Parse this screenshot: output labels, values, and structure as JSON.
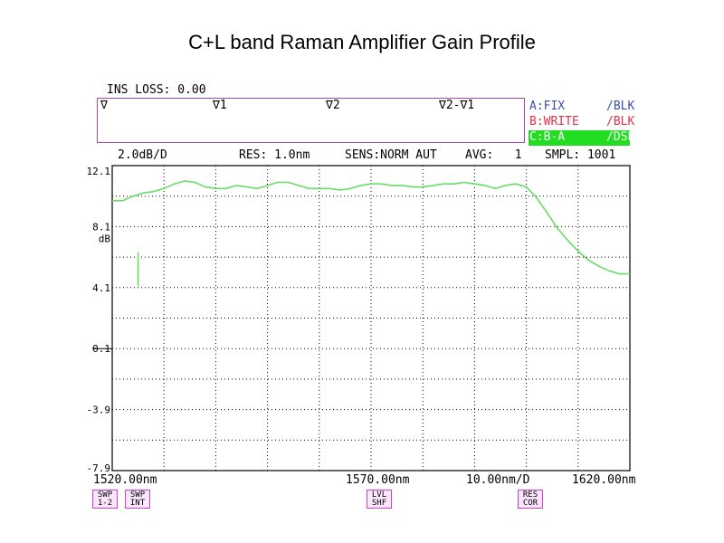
{
  "title": "C+L band Raman Amplifier Gain Profile",
  "ins_loss": "INS LOSS: 0.00",
  "markers": [
    "∇",
    "∇1",
    "∇2",
    "∇2-∇1"
  ],
  "traces": [
    {
      "label": "A:FIX",
      "mode": "/BLK",
      "color": "#3a4fb0"
    },
    {
      "label": "B:WRITE",
      "mode": "/BLK",
      "color": "#e0344a"
    },
    {
      "label": "C:B-A",
      "mode": "/DSP",
      "color": "#ffffff",
      "highlight": "#22dd22"
    }
  ],
  "status": {
    "scale": "2.0dB/D",
    "res": "RES: 1.0nm",
    "sens": "SENS:NORM AUT",
    "avg": "AVG:   1",
    "smpl": "SMPL: 1001"
  },
  "soft_keys": [
    {
      "line1": "SWP",
      "line2": "1-2"
    },
    {
      "line1": "SWP",
      "line2": "INT"
    },
    {
      "line1": "LVL",
      "line2": "SHF"
    },
    {
      "line1": "RES",
      "line2": "COR"
    }
  ],
  "chart_data": {
    "type": "line",
    "title": "C+L band Raman Amplifier Gain Profile",
    "xlabel": "",
    "ylabel": "dB",
    "x_labels": {
      "start": "1520.00nm",
      "center": "1570.00nm",
      "span_per_div": "10.00nm/D",
      "end": "1620.00nm"
    },
    "xlim": [
      1520,
      1620
    ],
    "ylim": [
      -7.9,
      12.1
    ],
    "y_ticks": [
      "12.1",
      "8.1",
      "4.1",
      "0.1",
      "-3.9",
      "-7.9"
    ],
    "y_unit_label": "dB",
    "grid": true,
    "series": [
      {
        "color": "#66dd66",
        "x": [
          1520,
          1522,
          1524,
          1526,
          1528,
          1530,
          1532,
          1534,
          1536,
          1538,
          1540,
          1542,
          1544,
          1546,
          1548,
          1550,
          1552,
          1554,
          1556,
          1558,
          1560,
          1562,
          1564,
          1566,
          1568,
          1570,
          1572,
          1574,
          1576,
          1578,
          1580,
          1582,
          1584,
          1586,
          1588,
          1590,
          1592,
          1594,
          1596,
          1598,
          1600,
          1602,
          1604,
          1606,
          1608,
          1610,
          1612,
          1614,
          1616,
          1618,
          1620
        ],
        "y": [
          9.8,
          9.8,
          10.1,
          10.3,
          10.4,
          10.6,
          10.9,
          11.1,
          11.0,
          10.7,
          10.6,
          10.6,
          10.8,
          10.7,
          10.6,
          10.8,
          11.0,
          11.0,
          10.8,
          10.6,
          10.6,
          10.6,
          10.5,
          10.6,
          10.8,
          10.9,
          10.9,
          10.8,
          10.8,
          10.7,
          10.7,
          10.8,
          10.9,
          10.9,
          11.0,
          10.9,
          10.8,
          10.6,
          10.8,
          10.9,
          10.7,
          10.0,
          9.0,
          8.0,
          7.2,
          6.5,
          5.9,
          5.5,
          5.2,
          5.0,
          5.0
        ]
      }
    ],
    "artifact": {
      "x": 1525,
      "y_from": 6.4,
      "y_to": 4.2
    }
  }
}
